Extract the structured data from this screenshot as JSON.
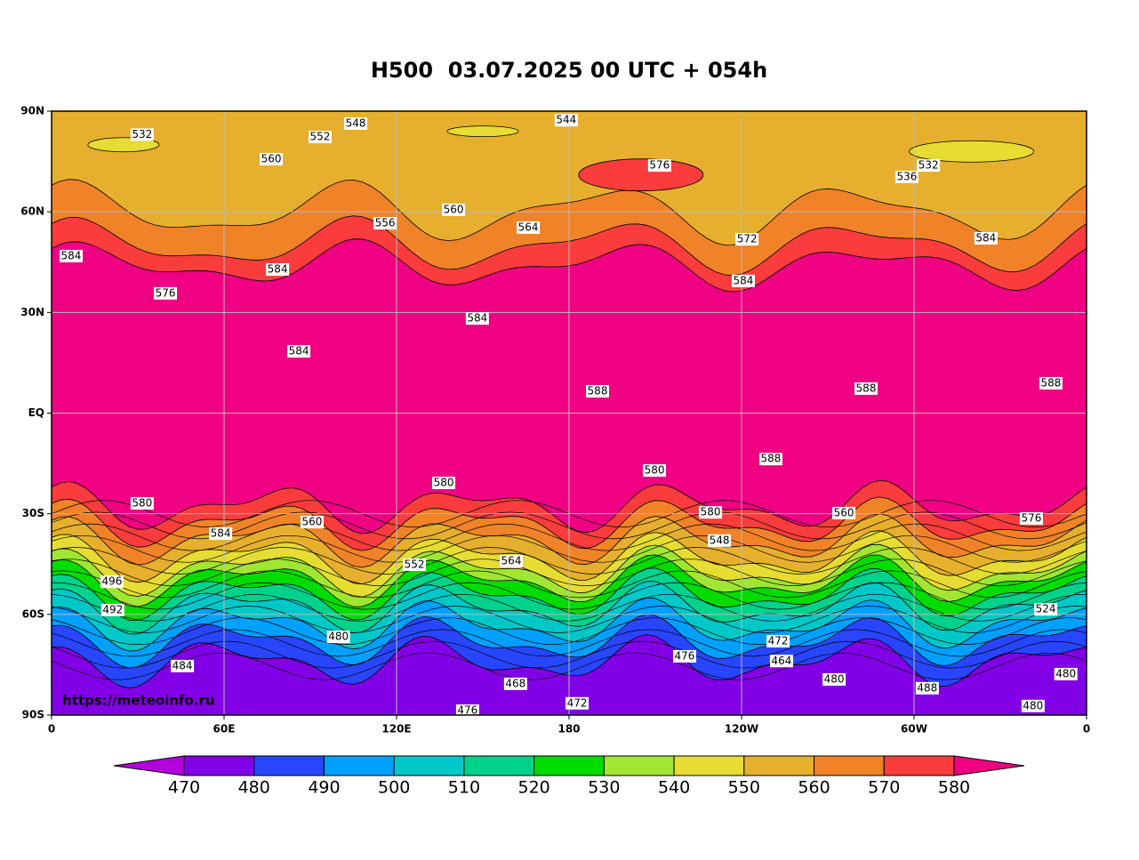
{
  "title": "H500  03.07.2025 00 UTC + 054h",
  "watermark": "https://meteoinfo.ru",
  "map": {
    "lat_ticks": [
      {
        "value": 90,
        "label": "90N"
      },
      {
        "value": 60,
        "label": "60N"
      },
      {
        "value": 30,
        "label": "30N"
      },
      {
        "value": 0,
        "label": "EQ"
      },
      {
        "value": -30,
        "label": "30S"
      },
      {
        "value": -60,
        "label": "60S"
      },
      {
        "value": -90,
        "label": "90S"
      }
    ],
    "lon_ticks": [
      {
        "value": 0,
        "label": "0"
      },
      {
        "value": 60,
        "label": "60E"
      },
      {
        "value": 120,
        "label": "120E"
      },
      {
        "value": 180,
        "label": "180"
      },
      {
        "value": 240,
        "label": "120W"
      },
      {
        "value": 300,
        "label": "60W"
      },
      {
        "value": 360,
        "label": "0"
      }
    ],
    "contour_labels": [
      {
        "label": "548",
        "lon": 105.8,
        "lat": 86.3
      },
      {
        "label": "544",
        "lon": 179,
        "lat": 87.3
      },
      {
        "label": "532",
        "lon": 31.5,
        "lat": 83
      },
      {
        "label": "560",
        "lon": 76.4,
        "lat": 75.7
      },
      {
        "label": "552",
        "lon": 93.4,
        "lat": 82.3
      },
      {
        "label": "556",
        "lon": 116,
        "lat": 56.6
      },
      {
        "label": "560",
        "lon": 139.8,
        "lat": 60.6
      },
      {
        "label": "564",
        "lon": 165.8,
        "lat": 55.3
      },
      {
        "label": "576",
        "lon": 211.5,
        "lat": 73.8
      },
      {
        "label": "572",
        "lon": 241.9,
        "lat": 51.8
      },
      {
        "label": "584",
        "lon": 240.6,
        "lat": 39.4
      },
      {
        "label": "532",
        "lon": 305,
        "lat": 73.8
      },
      {
        "label": "536",
        "lon": 297.5,
        "lat": 70.4
      },
      {
        "label": "584",
        "lon": 325,
        "lat": 52.1
      },
      {
        "label": "584",
        "lon": 6.8,
        "lat": 46.8
      },
      {
        "label": "576",
        "lon": 39.6,
        "lat": 35.7
      },
      {
        "label": "584",
        "lon": 78.6,
        "lat": 42.8
      },
      {
        "label": "584",
        "lon": 148.1,
        "lat": 28.2
      },
      {
        "label": "584",
        "lon": 86,
        "lat": 18.4
      },
      {
        "label": "588",
        "lon": 189.9,
        "lat": 6.5
      },
      {
        "label": "588",
        "lon": 283.3,
        "lat": 7.3
      },
      {
        "label": "588",
        "lon": 347.6,
        "lat": 8.9
      },
      {
        "label": "588",
        "lon": 250.2,
        "lat": -13.7
      },
      {
        "label": "580",
        "lon": 209.7,
        "lat": -17.1
      },
      {
        "label": "580",
        "lon": 136.4,
        "lat": -20.8
      },
      {
        "label": "580",
        "lon": 31.5,
        "lat": -26.9
      },
      {
        "label": "584",
        "lon": 58.8,
        "lat": -35.9
      },
      {
        "label": "560",
        "lon": 90.6,
        "lat": -32.5
      },
      {
        "label": "552",
        "lon": 126.2,
        "lat": -45.2
      },
      {
        "label": "564",
        "lon": 159.9,
        "lat": -44.1
      },
      {
        "label": "580",
        "lon": 229.2,
        "lat": -29.6
      },
      {
        "label": "548",
        "lon": 232.3,
        "lat": -38
      },
      {
        "label": "560",
        "lon": 275.6,
        "lat": -29.8
      },
      {
        "label": "576",
        "lon": 340.8,
        "lat": -31.4
      },
      {
        "label": "496",
        "lon": 21,
        "lat": -50.3
      },
      {
        "label": "492",
        "lon": 21.3,
        "lat": -58.7
      },
      {
        "label": "524",
        "lon": 345.8,
        "lat": -58.5
      },
      {
        "label": "484",
        "lon": 45.5,
        "lat": -75.4
      },
      {
        "label": "480",
        "lon": 99.8,
        "lat": -66.7
      },
      {
        "label": "476",
        "lon": 220.2,
        "lat": -72.5
      },
      {
        "label": "472",
        "lon": 252.7,
        "lat": -68
      },
      {
        "label": "464",
        "lon": 253.9,
        "lat": -73.9
      },
      {
        "label": "480",
        "lon": 272.2,
        "lat": -79.4
      },
      {
        "label": "488",
        "lon": 304.6,
        "lat": -82
      },
      {
        "label": "480",
        "lon": 352.8,
        "lat": -77.8
      },
      {
        "label": "480",
        "lon": 341.4,
        "lat": -87.3
      },
      {
        "label": "476",
        "lon": 144.7,
        "lat": -88.7
      },
      {
        "label": "472",
        "lon": 182.8,
        "lat": -86.5
      },
      {
        "label": "468",
        "lon": 161.4,
        "lat": -80.7
      }
    ]
  },
  "colorbar": {
    "levels": [
      470,
      480,
      490,
      500,
      510,
      520,
      530,
      540,
      550,
      560,
      570,
      580
    ],
    "colors": [
      "#b400dc",
      "#8200e6",
      "#2846ff",
      "#00a0ff",
      "#00c8c8",
      "#00d28c",
      "#00dc00",
      "#a0e632",
      "#e6dc32",
      "#e6af2d",
      "#f08228",
      "#fa3c3c",
      "#f00082"
    ]
  }
}
